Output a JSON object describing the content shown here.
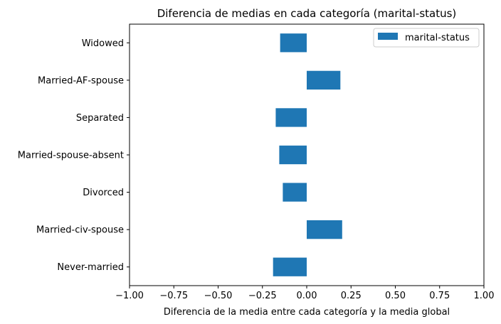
{
  "chart_data": {
    "type": "bar",
    "orientation": "horizontal",
    "title": "Diferencia de medias en cada categoría (marital-status)",
    "xlabel": "Diferencia de la media entre cada categoría y la media global",
    "ylabel": "",
    "xlim": [
      -1.0,
      1.0
    ],
    "xticks": [
      -1.0,
      -0.75,
      -0.5,
      -0.25,
      0.0,
      0.25,
      0.5,
      0.75,
      1.0
    ],
    "xtick_labels": [
      "−1.00",
      "−0.75",
      "−0.50",
      "−0.25",
      "0.00",
      "0.25",
      "0.50",
      "0.75",
      "1.00"
    ],
    "categories": [
      "Never-married",
      "Married-civ-spouse",
      "Divorced",
      "Married-spouse-absent",
      "Separated",
      "Married-AF-spouse",
      "Widowed"
    ],
    "series": [
      {
        "name": "marital-status",
        "color": "#1f77b4",
        "values": [
          -0.19,
          0.2,
          -0.135,
          -0.155,
          -0.175,
          0.19,
          -0.15
        ]
      }
    ],
    "legend": {
      "position": "top-right"
    },
    "grid": false
  }
}
